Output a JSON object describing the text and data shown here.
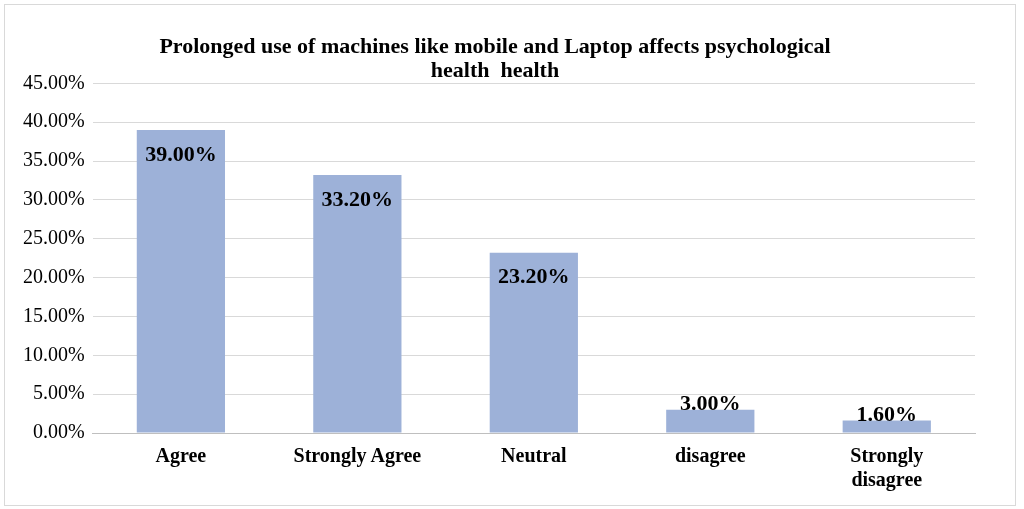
{
  "chart_data": {
    "type": "bar",
    "title": "Prolonged use of machines like mobile and Laptop affects psychological health  health",
    "categories": [
      "Agree",
      "Strongly Agree",
      "Neutral",
      "disagree",
      "Strongly disagree"
    ],
    "values": [
      39.0,
      33.2,
      23.2,
      3.0,
      1.6
    ],
    "value_labels": [
      "39.00%",
      "33.20%",
      "23.20%",
      "3.00%",
      "1.60%"
    ],
    "color": "#9db1d8",
    "ylim": [
      0,
      45
    ],
    "yticks": [
      {
        "value": 0,
        "label": "0.00%"
      },
      {
        "value": 5,
        "label": "5.00%"
      },
      {
        "value": 10,
        "label": "10.00%"
      },
      {
        "value": 15,
        "label": "15.00%"
      },
      {
        "value": 20,
        "label": "20.00%"
      },
      {
        "value": 25,
        "label": "25.00%"
      },
      {
        "value": 30,
        "label": "30.00%"
      },
      {
        "value": 35,
        "label": "35.00%"
      },
      {
        "value": 40,
        "label": "40.00%"
      },
      {
        "value": 45,
        "label": "45.00%"
      }
    ],
    "grid": "y",
    "legend": false
  }
}
